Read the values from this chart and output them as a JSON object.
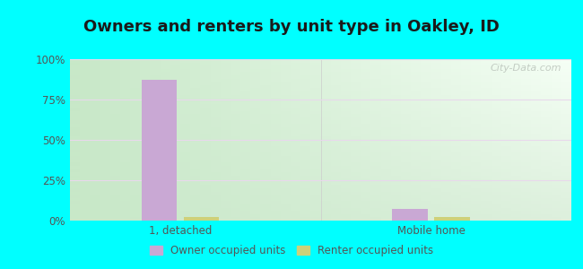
{
  "title": "Owners and renters by unit type in Oakley, ID",
  "categories": [
    "1, detached",
    "Mobile home"
  ],
  "owner_values": [
    87,
    7
  ],
  "renter_values": [
    2,
    2
  ],
  "owner_color": "#c9a8d4",
  "renter_color": "#cdd17a",
  "background_color": "#00ffff",
  "plot_bg_topleft": "#c8e8cc",
  "plot_bg_topright": "#f0f8f0",
  "plot_bg_bottomleft": "#c8e8cc",
  "plot_bg_bottomright": "#e8f5e9",
  "yticks": [
    0,
    25,
    50,
    75,
    100
  ],
  "ytick_labels": [
    "0%",
    "25%",
    "50%",
    "75%",
    "100%"
  ],
  "bar_width": 0.35,
  "legend_owner": "Owner occupied units",
  "legend_renter": "Renter occupied units",
  "title_fontsize": 13,
  "watermark": "City-Data.com",
  "grid_color": "#e8d8ec",
  "tick_color": "#555555"
}
